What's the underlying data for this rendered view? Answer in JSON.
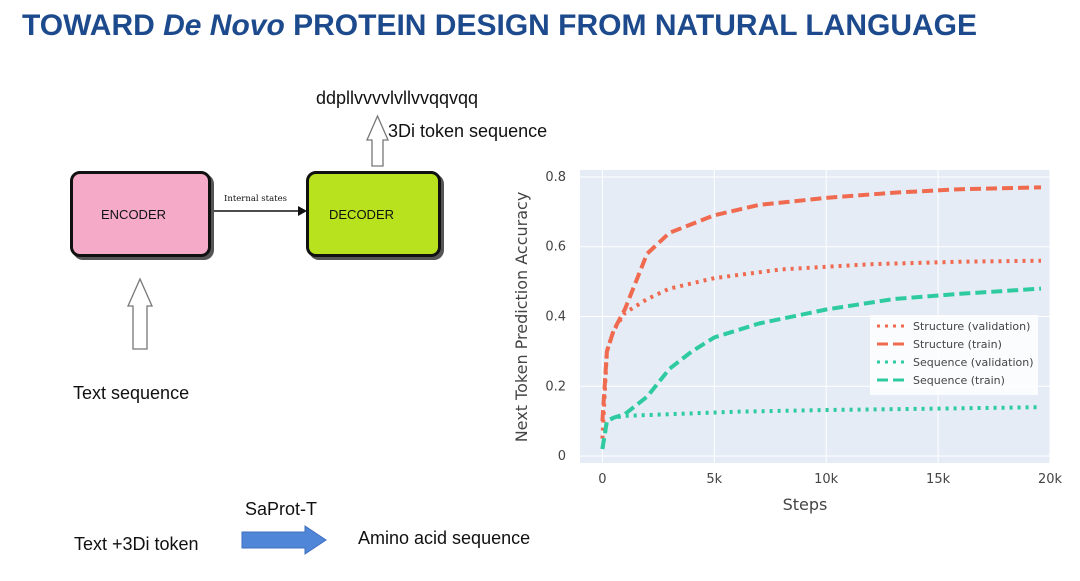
{
  "title": {
    "part1": "TOWARD ",
    "italic": "De Novo",
    "part2": " PROTEIN DESIGN FROM NATURAL LANGUAGE"
  },
  "diagram": {
    "token_sequence": "ddpllvvvvlvllvvqqvqq",
    "token_label": "3Di token sequence",
    "encoder_label": "ENCODER",
    "decoder_label": "DECODER",
    "internal_label": "Internal states",
    "text_sequence_label": "Text sequence",
    "saprot_label": "SaProt-T",
    "text_3di_label": "Text +3Di token",
    "amino_acid_label": "Amino acid sequence",
    "colors": {
      "encoder": "#f5aac8",
      "decoder": "#b7e21d",
      "pipeline_arrow": "#4f86d8"
    }
  },
  "chart_data": {
    "type": "line",
    "xlabel": "Steps",
    "ylabel": "Next Token Prediction Accuracy",
    "xlim": [
      -1000,
      20000
    ],
    "ylim": [
      -0.02,
      0.82
    ],
    "x_ticks": [
      0,
      5000,
      10000,
      15000,
      20000
    ],
    "x_tick_labels": [
      "0",
      "5k",
      "10k",
      "15k",
      "20k"
    ],
    "y_ticks": [
      0,
      0.2,
      0.4,
      0.6,
      0.8
    ],
    "y_tick_labels": [
      "0",
      "0.2",
      "0.4",
      "0.6",
      "0.8"
    ],
    "grid": true,
    "legend_position": "right",
    "background": "#e5ecf6",
    "series": [
      {
        "name": "Structure (validation)",
        "color": "#ef6a4f",
        "dash": "dotted",
        "x": [
          0,
          200,
          500,
          1000,
          2000,
          3000,
          5000,
          8000,
          12000,
          16000,
          19600
        ],
        "y": [
          0.05,
          0.3,
          0.36,
          0.41,
          0.45,
          0.48,
          0.51,
          0.535,
          0.55,
          0.557,
          0.56
        ]
      },
      {
        "name": "Structure (train)",
        "color": "#ef6a4f",
        "dash": "dashed",
        "x": [
          0,
          200,
          500,
          1000,
          2000,
          3000,
          5000,
          7000,
          10000,
          13000,
          16000,
          19600
        ],
        "y": [
          0.1,
          0.3,
          0.36,
          0.42,
          0.58,
          0.64,
          0.69,
          0.72,
          0.74,
          0.755,
          0.765,
          0.77
        ]
      },
      {
        "name": "Sequence (validation)",
        "color": "#2ecba0",
        "dash": "dotted",
        "x": [
          0,
          200,
          500,
          1000,
          3000,
          6000,
          10000,
          14000,
          19600
        ],
        "y": [
          0.02,
          0.1,
          0.11,
          0.115,
          0.12,
          0.127,
          0.132,
          0.135,
          0.14
        ]
      },
      {
        "name": "Sequence (train)",
        "color": "#2ecba0",
        "dash": "dashed",
        "x": [
          0,
          200,
          500,
          1000,
          2000,
          3000,
          4000,
          5000,
          7000,
          10000,
          13000,
          16000,
          19600
        ],
        "y": [
          0.02,
          0.1,
          0.11,
          0.12,
          0.17,
          0.25,
          0.3,
          0.34,
          0.38,
          0.42,
          0.45,
          0.465,
          0.48
        ]
      }
    ]
  }
}
